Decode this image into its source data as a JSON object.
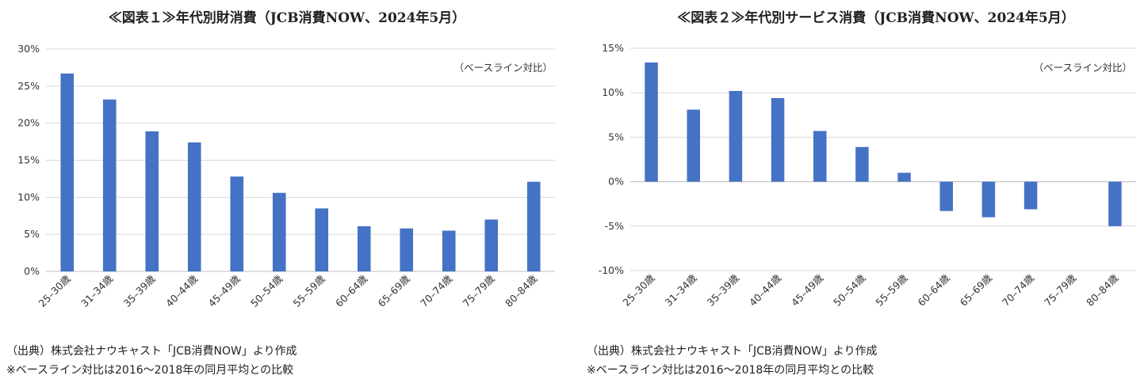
{
  "chart_data": [
    {
      "type": "bar",
      "title": "≪図表１≫年代別財消費（JCB消費NOW、2024年5月）",
      "annotation": "（ベースライン対比）",
      "categories": [
        "25–30歳",
        "31–34歳",
        "35–39歳",
        "40–44歳",
        "45–49歳",
        "50–54歳",
        "55–59歳",
        "60–64歳",
        "65–69歳",
        "70–74歳",
        "75–79歳",
        "80–84歳"
      ],
      "values": [
        26.7,
        23.2,
        18.9,
        17.4,
        12.8,
        10.6,
        8.5,
        6.1,
        5.8,
        5.5,
        7.0,
        12.1
      ],
      "ylim": [
        0,
        30
      ],
      "yticks": [
        0,
        5,
        10,
        15,
        20,
        25,
        30
      ],
      "ytick_labels": [
        "0%",
        "5%",
        "10%",
        "15%",
        "20%",
        "25%",
        "30%"
      ],
      "grid": true,
      "color": "#4472C4",
      "footnotes": [
        "（出典）株式会社ナウキャスト「JCB消費NOW」より作成",
        "※ベースライン対比は2016～2018年の同月平均との比較"
      ]
    },
    {
      "type": "bar",
      "title": "≪図表２≫年代別サービス消費（JCB消費NOW、2024年5月）",
      "annotation": "（ベースライン対比）",
      "categories": [
        "25–30歳",
        "31–34歳",
        "35–39歳",
        "40–44歳",
        "45–49歳",
        "50–54歳",
        "55–59歳",
        "60–64歳",
        "65–69歳",
        "70–74歳",
        "75–79歳",
        "80–84歳"
      ],
      "values": [
        13.4,
        8.1,
        10.2,
        9.4,
        5.7,
        3.9,
        1.0,
        -3.3,
        -4.0,
        -3.1,
        0.0,
        -5.0
      ],
      "ylim": [
        -10,
        15
      ],
      "yticks": [
        -10,
        -5,
        0,
        5,
        10,
        15
      ],
      "ytick_labels": [
        "-10%",
        "-5%",
        "0%",
        "5%",
        "10%",
        "15%"
      ],
      "grid": true,
      "color": "#4472C4",
      "footnotes": [
        "（出典）株式会社ナウキャスト「JCB消費NOW」より作成",
        "※ベースライン対比は2016～2018年の同月平均との比較"
      ]
    }
  ]
}
